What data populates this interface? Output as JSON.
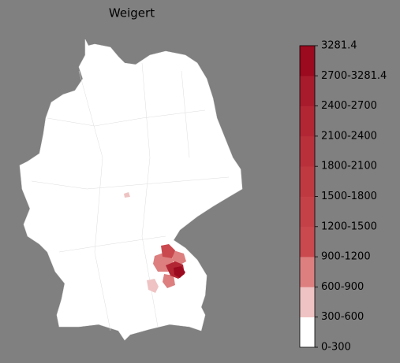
{
  "title": "Weigert",
  "colorbar": {
    "labels": [
      "0-300",
      "300-600",
      "600-900",
      "900-1200",
      "1200-1500",
      "1500-1800",
      "1800-2100",
      "2100-2400",
      "2400-2700",
      "2700-3281.4",
      "3281.4"
    ],
    "colors": [
      "#ffffff",
      "#efc3c3",
      "#dd7f7f",
      "#c9494e",
      "#c44148",
      "#bf3941",
      "#b9303b",
      "#b22634",
      "#a81b2c",
      "#9b0a1e"
    ]
  }
}
